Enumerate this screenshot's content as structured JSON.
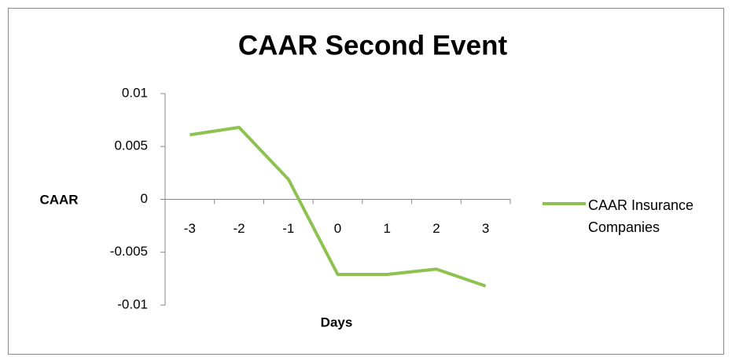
{
  "chart_data": {
    "type": "line",
    "title": "CAAR Second Event",
    "x_label": "Days",
    "y_label": "CAAR",
    "categories": [
      "-3",
      "-2",
      "-1",
      "0",
      "1",
      "2",
      "3"
    ],
    "series": [
      {
        "name": "CAAR Insurance Companies",
        "color": "#8dc150",
        "values": [
          0.0061,
          0.0068,
          0.0019,
          -0.0071,
          -0.0071,
          -0.0066,
          -0.0082
        ]
      }
    ],
    "ylim": [
      -0.01,
      0.01
    ],
    "yticks": [
      -0.01,
      -0.005,
      0,
      0.005,
      0.01
    ],
    "grid": false,
    "legend": "right"
  }
}
